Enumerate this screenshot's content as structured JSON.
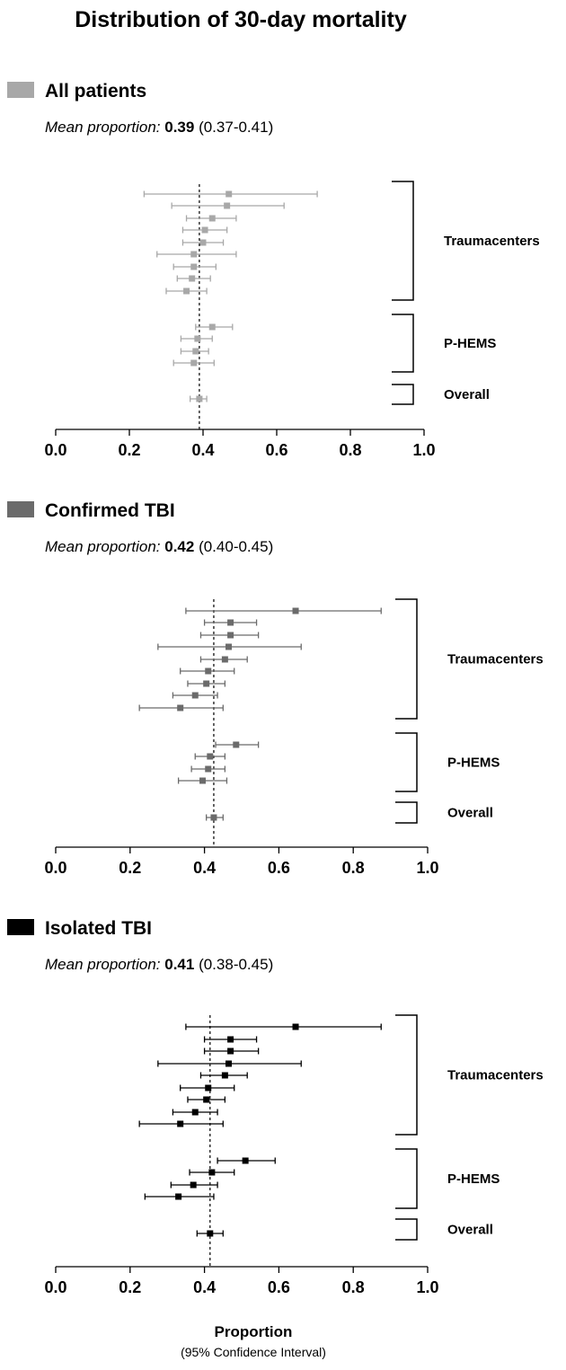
{
  "chart_data": {
    "type": "forest",
    "title": "Distribution of 30-day mortality",
    "xlabel": "Proportion",
    "xsublabel": "(95% Confidence Interval)",
    "xlim": [
      0.0,
      1.0
    ],
    "xticks": [
      "0.0",
      "0.2",
      "0.4",
      "0.6",
      "0.8",
      "1.0"
    ],
    "grid": false,
    "panels": [
      {
        "label": "All patients",
        "color": "#a8a8a8",
        "mean_label": "Mean proportion:",
        "mean_value": "0.39",
        "mean_ci": "(0.37-0.41)",
        "mean_line": 0.39,
        "groups": [
          {
            "name": "Traumacenters",
            "points": [
              {
                "est": 0.47,
                "lo": 0.24,
                "hi": 0.71
              },
              {
                "est": 0.465,
                "lo": 0.315,
                "hi": 0.62
              },
              {
                "est": 0.425,
                "lo": 0.355,
                "hi": 0.49
              },
              {
                "est": 0.405,
                "lo": 0.345,
                "hi": 0.465
              },
              {
                "est": 0.4,
                "lo": 0.345,
                "hi": 0.455
              },
              {
                "est": 0.375,
                "lo": 0.275,
                "hi": 0.49
              },
              {
                "est": 0.375,
                "lo": 0.32,
                "hi": 0.435
              },
              {
                "est": 0.37,
                "lo": 0.33,
                "hi": 0.42
              },
              {
                "est": 0.355,
                "lo": 0.3,
                "hi": 0.41
              }
            ]
          },
          {
            "name": "P-HEMS",
            "points": [
              {
                "est": 0.425,
                "lo": 0.38,
                "hi": 0.48
              },
              {
                "est": 0.385,
                "lo": 0.34,
                "hi": 0.425
              },
              {
                "est": 0.38,
                "lo": 0.34,
                "hi": 0.415
              },
              {
                "est": 0.375,
                "lo": 0.32,
                "hi": 0.43
              }
            ]
          },
          {
            "name": "Overall",
            "points": [
              {
                "est": 0.39,
                "lo": 0.365,
                "hi": 0.41
              }
            ]
          }
        ]
      },
      {
        "label": "Confirmed TBI",
        "color": "#6b6b6b",
        "mean_label": "Mean proportion:",
        "mean_value": "0.42",
        "mean_ci": "(0.40-0.45)",
        "mean_line": 0.425,
        "groups": [
          {
            "name": "Traumacenters",
            "points": [
              {
                "est": 0.645,
                "lo": 0.35,
                "hi": 0.875
              },
              {
                "est": 0.47,
                "lo": 0.4,
                "hi": 0.54
              },
              {
                "est": 0.47,
                "lo": 0.39,
                "hi": 0.545
              },
              {
                "est": 0.465,
                "lo": 0.275,
                "hi": 0.66
              },
              {
                "est": 0.455,
                "lo": 0.39,
                "hi": 0.515
              },
              {
                "est": 0.41,
                "lo": 0.335,
                "hi": 0.48
              },
              {
                "est": 0.405,
                "lo": 0.355,
                "hi": 0.455
              },
              {
                "est": 0.375,
                "lo": 0.315,
                "hi": 0.435
              },
              {
                "est": 0.335,
                "lo": 0.225,
                "hi": 0.45
              }
            ]
          },
          {
            "name": "P-HEMS",
            "points": [
              {
                "est": 0.485,
                "lo": 0.43,
                "hi": 0.545
              },
              {
                "est": 0.415,
                "lo": 0.375,
                "hi": 0.455
              },
              {
                "est": 0.41,
                "lo": 0.365,
                "hi": 0.455
              },
              {
                "est": 0.395,
                "lo": 0.33,
                "hi": 0.46
              }
            ]
          },
          {
            "name": "Overall",
            "points": [
              {
                "est": 0.425,
                "lo": 0.405,
                "hi": 0.45
              }
            ]
          }
        ]
      },
      {
        "label": "Isolated TBI",
        "color": "#000000",
        "mean_label": "Mean proportion:",
        "mean_value": "0.41",
        "mean_ci": "(0.38-0.45)",
        "mean_line": 0.415,
        "groups": [
          {
            "name": "Traumacenters",
            "points": [
              {
                "est": 0.645,
                "lo": 0.35,
                "hi": 0.875
              },
              {
                "est": 0.47,
                "lo": 0.4,
                "hi": 0.54
              },
              {
                "est": 0.47,
                "lo": 0.4,
                "hi": 0.545
              },
              {
                "est": 0.465,
                "lo": 0.275,
                "hi": 0.66
              },
              {
                "est": 0.455,
                "lo": 0.39,
                "hi": 0.515
              },
              {
                "est": 0.41,
                "lo": 0.335,
                "hi": 0.48
              },
              {
                "est": 0.405,
                "lo": 0.355,
                "hi": 0.455
              },
              {
                "est": 0.375,
                "lo": 0.315,
                "hi": 0.435
              },
              {
                "est": 0.335,
                "lo": 0.225,
                "hi": 0.45
              }
            ]
          },
          {
            "name": "P-HEMS",
            "points": [
              {
                "est": 0.51,
                "lo": 0.435,
                "hi": 0.59
              },
              {
                "est": 0.42,
                "lo": 0.36,
                "hi": 0.48
              },
              {
                "est": 0.37,
                "lo": 0.31,
                "hi": 0.435
              },
              {
                "est": 0.33,
                "lo": 0.24,
                "hi": 0.425
              }
            ]
          },
          {
            "name": "Overall",
            "points": [
              {
                "est": 0.415,
                "lo": 0.38,
                "hi": 0.45
              }
            ]
          }
        ]
      }
    ]
  }
}
